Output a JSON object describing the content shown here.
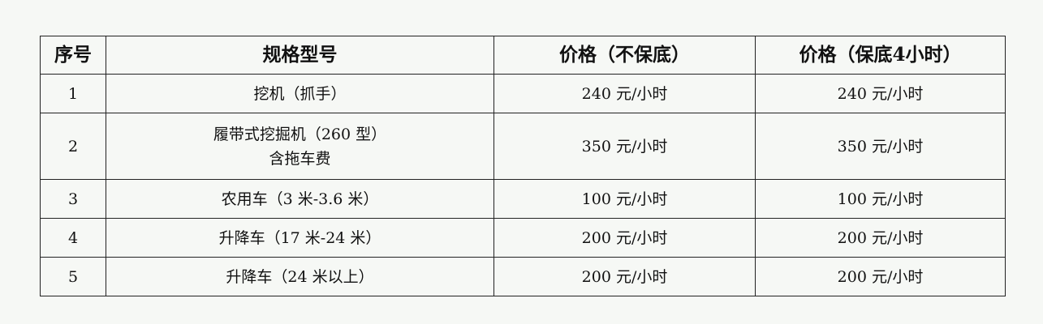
{
  "table": {
    "headers": [
      "序号",
      "规格型号",
      "价格（不保底）",
      "价格（保底4小时）"
    ],
    "rows": [
      {
        "no": "1",
        "model": [
          "挖机（抓手）"
        ],
        "price_no_min": "240 元/小时",
        "price_min_4h": "240 元/小时"
      },
      {
        "no": "2",
        "model": [
          "履带式挖掘机（260 型）",
          "含拖车费"
        ],
        "price_no_min": "350 元/小时",
        "price_min_4h": "350 元/小时"
      },
      {
        "no": "3",
        "model": [
          "农用车（3 米-3.6 米）"
        ],
        "price_no_min": "100 元/小时",
        "price_min_4h": "100 元/小时"
      },
      {
        "no": "4",
        "model": [
          "升降车（17 米-24 米）"
        ],
        "price_no_min": "200 元/小时",
        "price_min_4h": "200 元/小时"
      },
      {
        "no": "5",
        "model": [
          "升降车（24 米以上）"
        ],
        "price_no_min": "200 元/小时",
        "price_min_4h": "200 元/小时"
      }
    ]
  }
}
